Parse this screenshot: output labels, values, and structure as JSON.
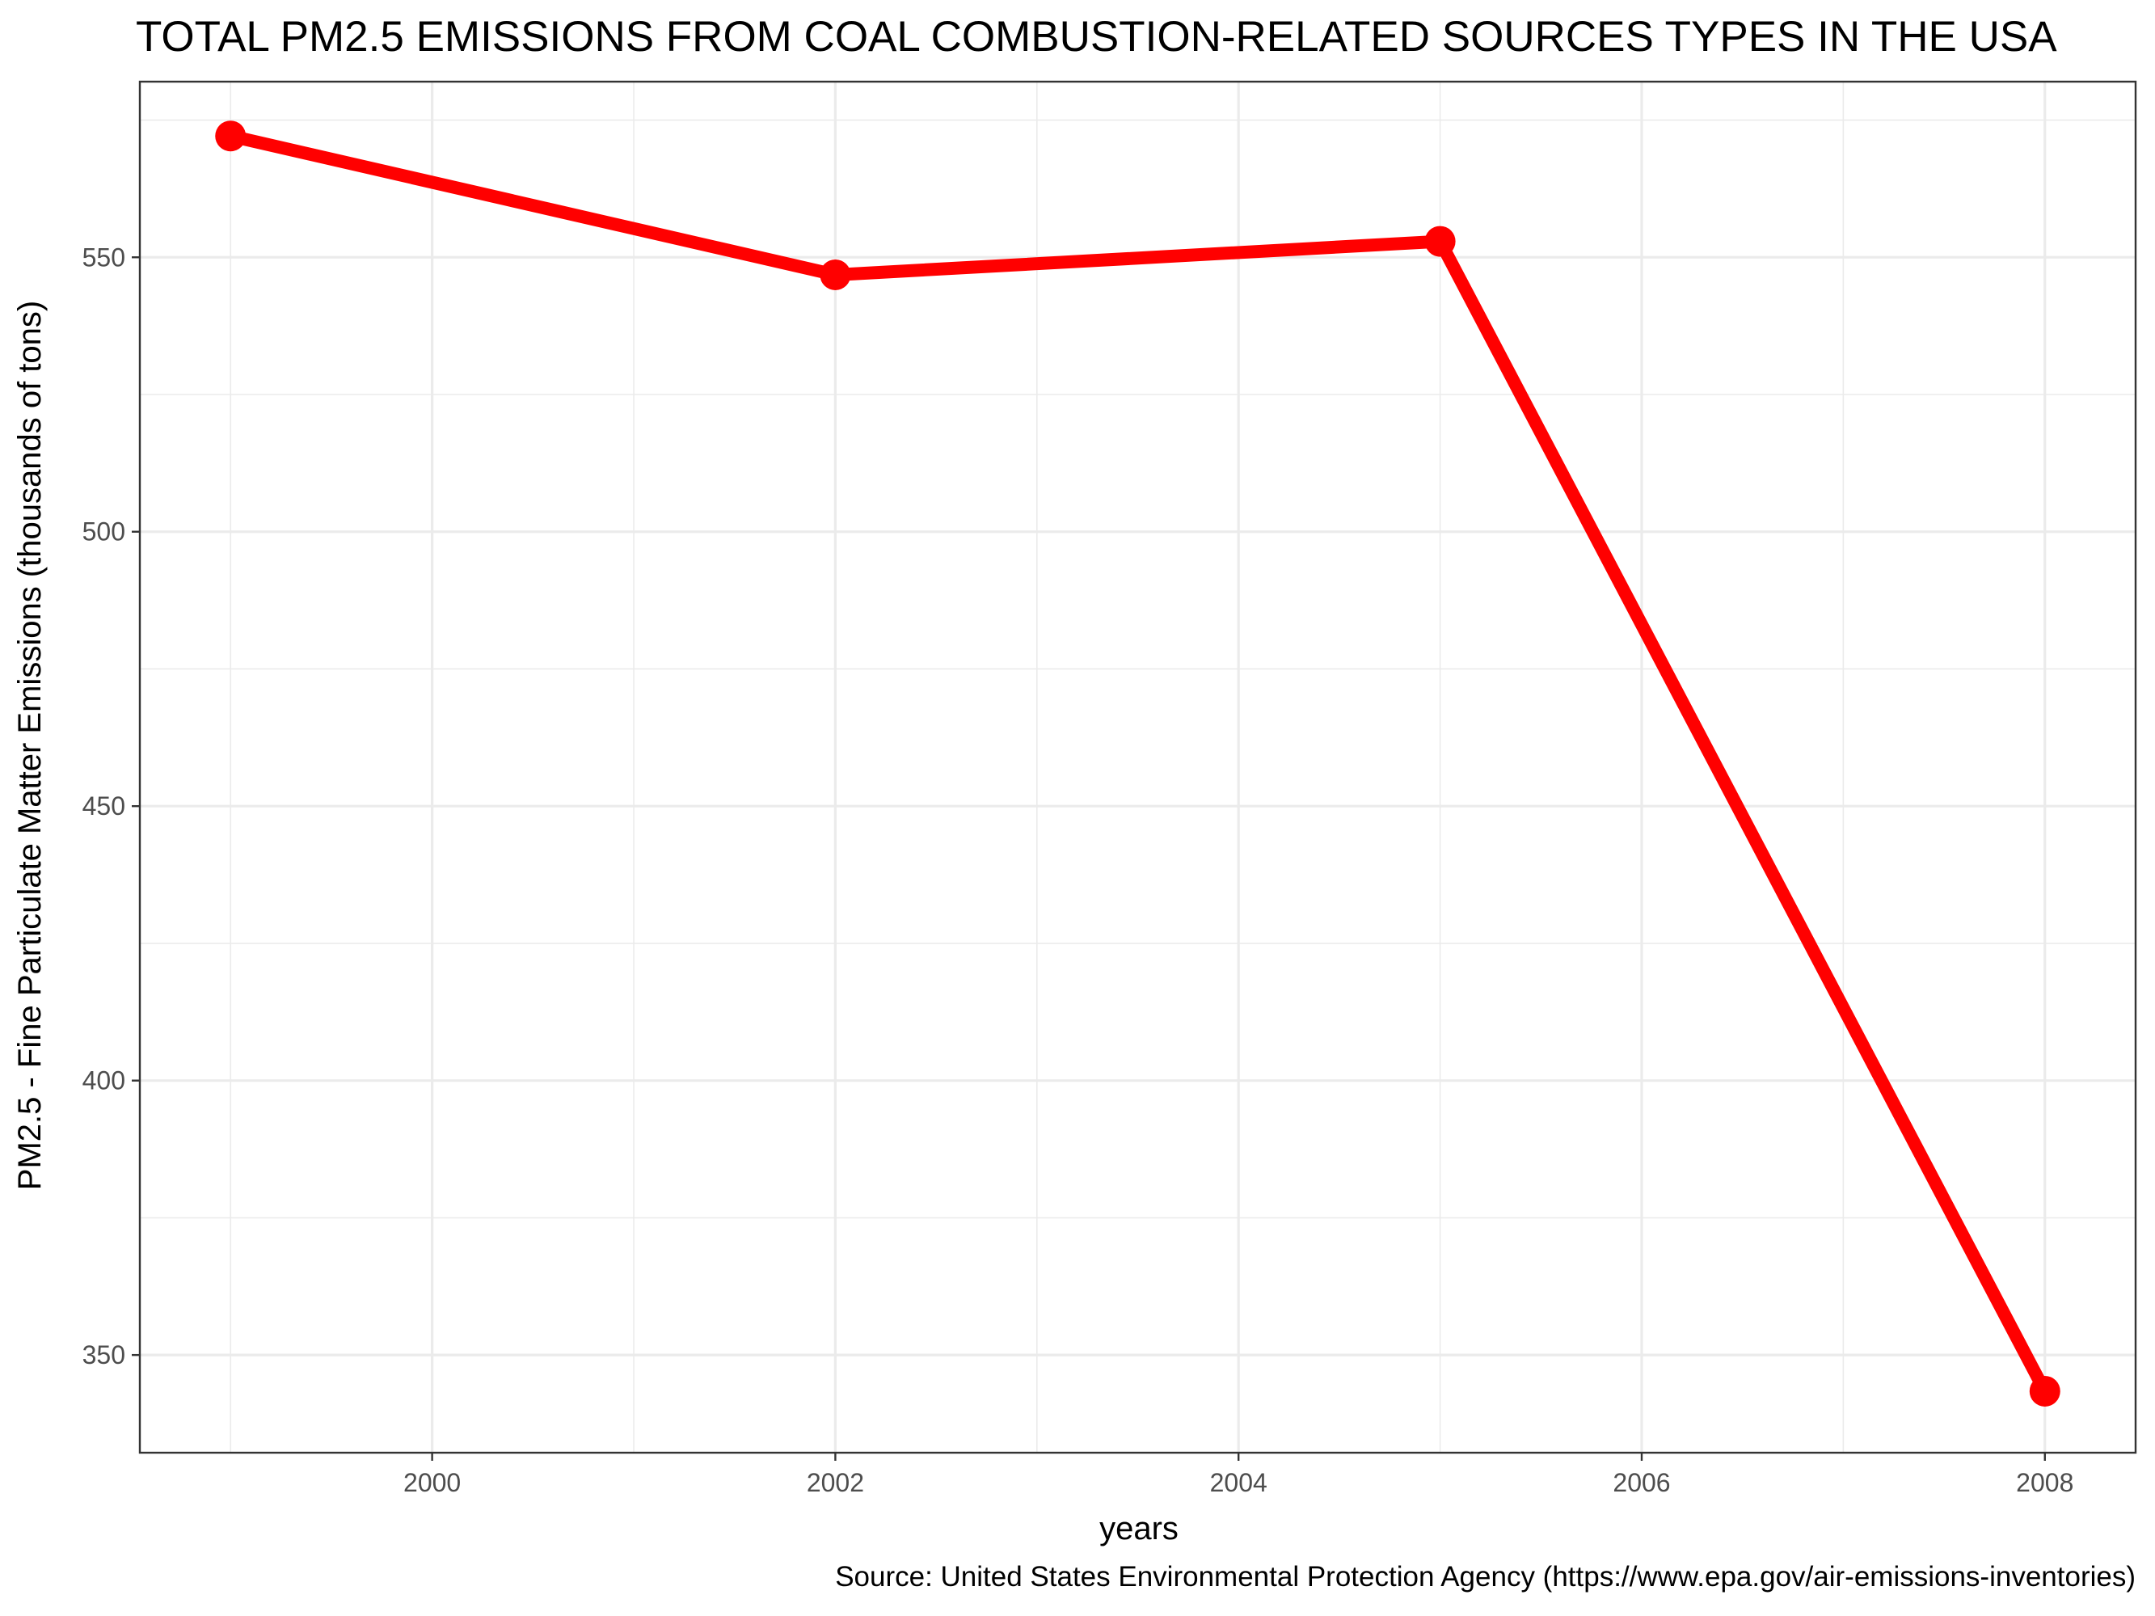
{
  "chart_data": {
    "type": "line",
    "title": "TOTAL PM2.5 EMISSIONS FROM COAL COMBUSTION-RELATED SOURCES TYPES IN THE USA",
    "xlabel": "years",
    "ylabel": "PM2.5 - Fine Particulate Matter Emissions (thousands of tons)",
    "caption": "Source: United States Environmental Protection Agency (https://www.epa.gov/air-emissions-inventories)",
    "x": [
      1999,
      2002,
      2005,
      2008
    ],
    "series": [
      {
        "values": [
          572.1,
          546.8,
          552.9,
          343.4
        ]
      }
    ],
    "xlim": [
      1998.55,
      2008.45
    ],
    "ylim": [
      332.2,
      582.0
    ],
    "x_ticks": [
      2000,
      2002,
      2004,
      2006,
      2008
    ],
    "x_tick_labels": [
      "2000",
      "2002",
      "2004",
      "2006",
      "2008"
    ],
    "y_ticks": [
      350,
      400,
      450,
      500,
      550
    ],
    "y_tick_labels": [
      "350",
      "400",
      "450",
      "500",
      "550"
    ],
    "grid": true,
    "legend": "none",
    "colors": {
      "line": "#ff0000",
      "grid": "#ebebeb",
      "panel_border": "#333333"
    }
  }
}
